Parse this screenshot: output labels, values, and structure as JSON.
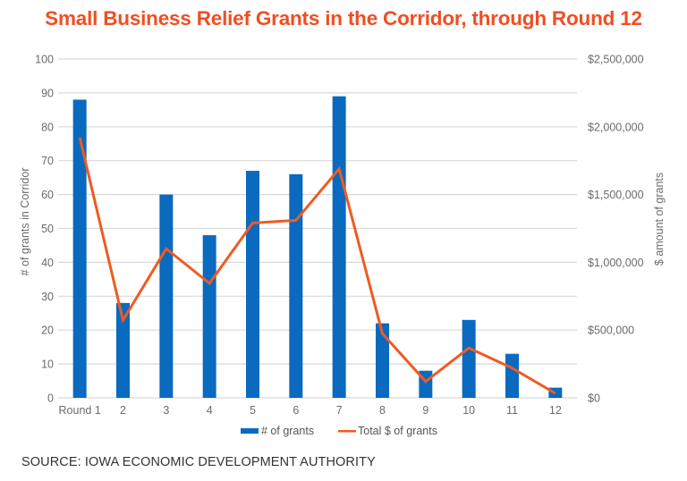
{
  "chart_data": {
    "type": "bar+line",
    "title": "Small Business Relief Grants in the Corridor, through Round 12",
    "categories": [
      "Round 1",
      "2",
      "3",
      "4",
      "5",
      "6",
      "7",
      "8",
      "9",
      "10",
      "11",
      "12"
    ],
    "series": [
      {
        "name": "# of grants",
        "type": "bar",
        "axis": "left",
        "color": "#0a6abf",
        "values": [
          88,
          28,
          60,
          48,
          67,
          66,
          89,
          22,
          8,
          23,
          13,
          3
        ]
      },
      {
        "name": "Total $ of grants",
        "type": "line",
        "axis": "right",
        "color": "#f05a22",
        "values": [
          1920000,
          573000,
          1100000,
          845000,
          1290000,
          1310000,
          1690000,
          474000,
          121000,
          368000,
          220000,
          33000
        ]
      }
    ],
    "ylabel": "# of grants in Corridor",
    "ylabel_right": "$ amount of grants",
    "xlabel": "",
    "ylim": [
      0,
      100
    ],
    "ylim_right": [
      0,
      2500000
    ],
    "yticks": [
      "0",
      "10",
      "20",
      "30",
      "40",
      "50",
      "60",
      "70",
      "80",
      "90",
      "100"
    ],
    "yticks_right": [
      "$0",
      "$500,000",
      "$1,000,000",
      "$1,500,000",
      "$2,000,000",
      "$2,500,000"
    ],
    "grid": true,
    "legend_position": "bottom-center",
    "title_color": "#f04e23"
  },
  "source": "SOURCE: IOWA ECONOMIC DEVELOPMENT AUTHORITY"
}
